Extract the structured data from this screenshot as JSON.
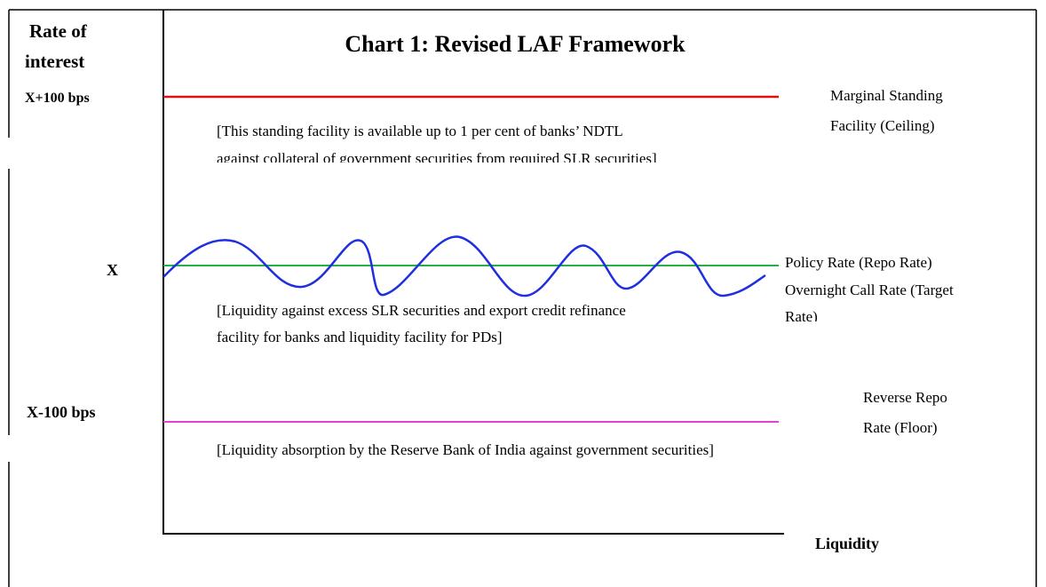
{
  "title": "Chart 1: Revised LAF Framework",
  "y_axis_label": [
    "Rate of",
    "interest"
  ],
  "x_axis_label": "Liquidity",
  "levels": [
    {
      "tick": "X+100  bps",
      "label": [
        "Marginal Standing",
        "Facility (Ceiling)"
      ],
      "note": [
        "[This standing facility is available up to 1 per cent of banks’ NDTL",
        "against collateral of government securities from required SLR securities]"
      ]
    },
    {
      "tick": "X",
      "label": [
        "Policy  Rate (Repo Rate)",
        "Overnight Call Rate (Target",
        "Rate)"
      ],
      "note": [
        "[Liquidity against excess SLR securities and export credit refinance",
        "facility for banks and liquidity facility for PDs]"
      ]
    },
    {
      "tick": "X-100 bps",
      "label": [
        "Reverse Repo",
        "Rate (Floor)"
      ],
      "note": [
        "[Liquidity absorption by the Reserve Bank of India against government securities]"
      ]
    }
  ]
}
